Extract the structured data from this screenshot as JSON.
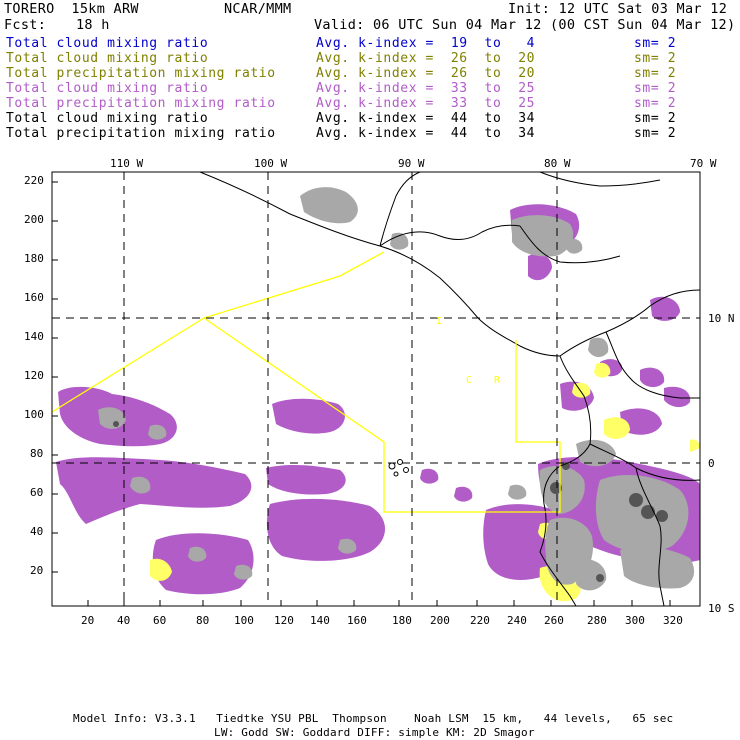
{
  "header": {
    "model": "TORERO  15km ARW",
    "org": "NCAR/MMM",
    "init": "Init: 12 UTC Sat 03 Mar 12",
    "fcst_label": "Fcst:",
    "fcst_value": "18 h",
    "valid": "Valid: 06 UTC Sun 04 Mar 12 (00 CST Sun 04 Mar 12)"
  },
  "legend": [
    {
      "field": "Total cloud mixing ratio",
      "range": "Avg. k-index =  19  to   4",
      "sm": "sm= 2",
      "color": "#0000cc"
    },
    {
      "field": "Total cloud mixing ratio",
      "range": "Avg. k-index =  26  to  20",
      "sm": "sm= 2",
      "color": "#808000"
    },
    {
      "field": "Total precipitation mixing ratio",
      "range": "Avg. k-index =  26  to  20",
      "sm": "sm= 2",
      "color": "#808000"
    },
    {
      "field": "Total cloud mixing ratio",
      "range": "Avg. k-index =  33  to  25",
      "sm": "sm= 2",
      "color": "#b25cc8"
    },
    {
      "field": "Total precipitation mixing ratio",
      "range": "Avg. k-index =  33  to  25",
      "sm": "sm= 2",
      "color": "#b25cc8"
    },
    {
      "field": "Total cloud mixing ratio",
      "range": "Avg. k-index =  44  to  34",
      "sm": "sm= 2",
      "color": "#000000"
    },
    {
      "field": "Total precipitation mixing ratio",
      "range": "Avg. k-index =  44  to  34",
      "sm": "sm= 2",
      "color": "#000000"
    }
  ],
  "axes": {
    "lon_labels": [
      "110 W",
      "100 W",
      "90 W",
      "80 W",
      "70 W"
    ],
    "lat_labels": [
      "10 N",
      "0",
      "10 S"
    ],
    "y_ticks": [
      "220",
      "200",
      "180",
      "160",
      "140",
      "120",
      "100",
      "80",
      "60",
      "40",
      "20"
    ],
    "x_ticks": [
      "20",
      "40",
      "60",
      "80",
      "100",
      "120",
      "140",
      "160",
      "180",
      "200",
      "220",
      "240",
      "260",
      "280",
      "300",
      "320"
    ]
  },
  "map_labels": {
    "c_label": "C",
    "r_label": "R",
    "i_label": "I"
  },
  "colors": {
    "purple": "#b25cc8",
    "gray": "#a8a8a8",
    "yellow": "#ffff66",
    "boundary": "#ffff00"
  },
  "footer": {
    "line1": "Model Info: V3.3.1   Tiedtke YSU PBL  Thompson    Noah LSM  15 km,   44 levels,   65 sec",
    "line2": "LW: Godd SW: Goddard DIFF: simple KM: 2D Smagor"
  }
}
